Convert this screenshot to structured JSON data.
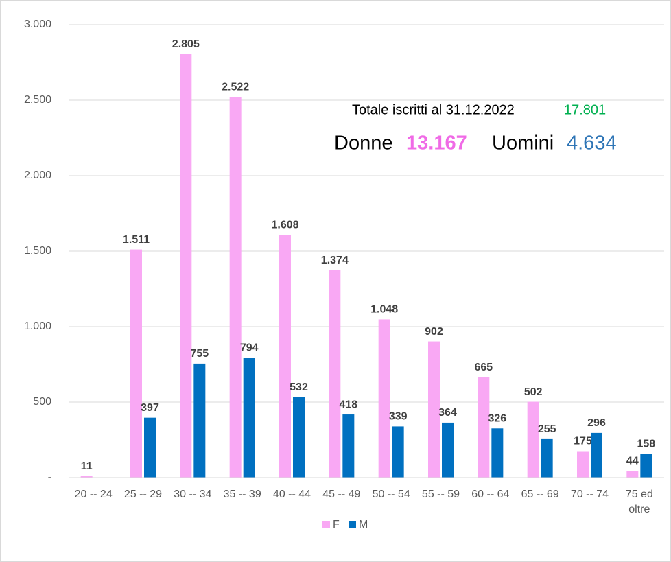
{
  "chart_data": {
    "type": "bar",
    "categories": [
      "20 -- 24",
      "25 -- 29",
      "30 -- 34",
      "35 -- 39",
      "40 -- 44",
      "45 -- 49",
      "50 -- 54",
      "55 -- 59",
      "60 -- 64",
      "65 -- 69",
      "70 -- 74",
      "75 ed oltre"
    ],
    "series": [
      {
        "name": "F",
        "color": "#f9a8f4",
        "values": [
          11,
          1511,
          2805,
          2522,
          1608,
          1374,
          1048,
          902,
          665,
          502,
          175,
          44
        ],
        "value_labels": [
          "11",
          "1.511",
          "2.805",
          "2.522",
          "1.608",
          "1.374",
          "1.048",
          "902",
          "665",
          "502",
          "175",
          "44"
        ]
      },
      {
        "name": "M",
        "color": "#0070c0",
        "values": [
          null,
          397,
          755,
          794,
          532,
          418,
          339,
          364,
          326,
          255,
          296,
          158
        ],
        "value_labels": [
          null,
          "397",
          "755",
          "794",
          "532",
          "418",
          "339",
          "364",
          "326",
          "255",
          "296",
          "158"
        ]
      }
    ],
    "ylim": [
      0,
      3000
    ],
    "yticks": [
      {
        "value": 0,
        "label": "-"
      },
      500,
      {
        "value": 1000,
        "label": "1.000"
      },
      {
        "value": 1500,
        "label": "1.500"
      },
      {
        "value": 2000,
        "label": "2.000"
      },
      {
        "value": 2500,
        "label": "2.500"
      },
      {
        "value": 3000,
        "label": "3.000"
      }
    ],
    "grid": true,
    "legend": "bottom",
    "annotations": [
      {
        "text": "Totale iscritti al 31.12.2022",
        "color": "#000000"
      },
      {
        "text": "17.801",
        "color": "#00b050"
      },
      {
        "text": "Donne",
        "color": "#000000"
      },
      {
        "text": "13.167",
        "color": "#f06ae6"
      },
      {
        "text": "Uomini",
        "color": "#000000"
      },
      {
        "text": "4.634",
        "color": "#2e75b6"
      }
    ]
  }
}
